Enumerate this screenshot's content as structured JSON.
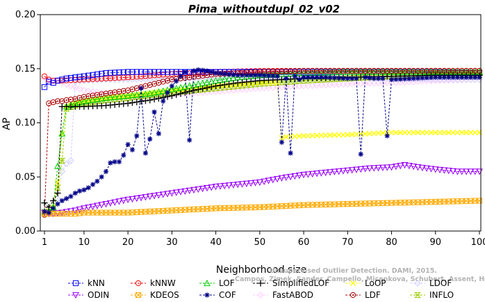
{
  "chart_data": {
    "type": "line",
    "title": "Pima_withoutdupl_02_v02",
    "xlabel": "Neighborhood size",
    "ylabel": "AP",
    "xlim": [
      1,
      100
    ],
    "ylim": [
      0,
      0.2
    ],
    "xticks": [
      1,
      10,
      20,
      30,
      40,
      50,
      60,
      70,
      80,
      90,
      100
    ],
    "yticks": [
      0.0,
      0.05,
      0.1,
      0.15,
      0.2
    ],
    "ytick_labels": [
      "0.00",
      "0.05",
      "0.10",
      "0.15",
      "0.20"
    ],
    "grid": false,
    "legend_position": "bottom",
    "watermark": [
      "Unsupervised Outlier Detection. DAMI, 2015.",
      "Campos, Zimek, Sander, Campello, Micenkova, Schubert, Assent, Houle"
    ],
    "series": [
      {
        "name": "kNN",
        "color": "#0000ff",
        "marker": "square",
        "x": [
          1,
          2,
          3,
          4,
          5,
          6,
          8,
          10,
          15,
          20,
          30,
          40,
          50,
          60,
          70,
          80,
          90,
          100
        ],
        "y": [
          0.133,
          0.138,
          0.137,
          0.139,
          0.14,
          0.141,
          0.142,
          0.143,
          0.146,
          0.147,
          0.147,
          0.147,
          0.147,
          0.147,
          0.147,
          0.147,
          0.147,
          0.146
        ]
      },
      {
        "name": "kNNW",
        "color": "#ff0000",
        "marker": "circle",
        "x": [
          1,
          2,
          3,
          5,
          10,
          20,
          30,
          40,
          50,
          60,
          70,
          80,
          90,
          100
        ],
        "y": [
          0.143,
          0.14,
          0.139,
          0.139,
          0.14,
          0.142,
          0.145,
          0.147,
          0.148,
          0.148,
          0.148,
          0.148,
          0.148,
          0.148
        ]
      },
      {
        "name": "LOF",
        "color": "#00cc00",
        "marker": "triangle-up",
        "x": [
          1,
          2,
          3,
          4,
          5,
          6,
          8,
          10,
          15,
          20,
          25,
          30,
          35,
          40,
          45,
          50,
          60,
          70,
          80,
          90,
          100
        ],
        "y": [
          0.018,
          0.018,
          0.022,
          0.06,
          0.09,
          0.115,
          0.118,
          0.12,
          0.123,
          0.125,
          0.127,
          0.131,
          0.135,
          0.139,
          0.142,
          0.144,
          0.146,
          0.147,
          0.147,
          0.147,
          0.147
        ]
      },
      {
        "name": "SimplifiedLOF",
        "color": "#000000",
        "marker": "plus",
        "x": [
          1,
          2,
          3,
          4,
          5,
          6,
          8,
          10,
          15,
          20,
          25,
          30,
          35,
          40,
          45,
          50,
          55,
          60,
          70,
          80,
          90,
          100
        ],
        "y": [
          0.026,
          0.022,
          0.028,
          0.035,
          0.115,
          0.115,
          0.115,
          0.115,
          0.116,
          0.118,
          0.121,
          0.125,
          0.13,
          0.134,
          0.137,
          0.139,
          0.14,
          0.141,
          0.142,
          0.143,
          0.144,
          0.144
        ]
      },
      {
        "name": "LoOP",
        "color": "#ffff00",
        "marker": "x",
        "x": [
          1,
          2,
          3,
          4,
          5,
          6,
          8,
          10,
          15,
          20,
          30,
          40,
          50,
          54,
          55,
          56,
          60,
          70,
          80,
          90,
          100
        ],
        "y": [
          0.018,
          0.017,
          0.022,
          0.045,
          0.09,
          0.115,
          0.118,
          0.12,
          0.123,
          0.125,
          0.13,
          0.134,
          0.137,
          0.137,
          0.086,
          0.087,
          0.088,
          0.089,
          0.091,
          0.091,
          0.091
        ]
      },
      {
        "name": "LDOF",
        "color": "#ccccff",
        "marker": "diamond",
        "x": [
          1,
          2,
          3,
          4,
          5,
          6,
          7,
          8,
          10,
          15,
          20,
          30,
          40,
          50,
          60,
          70,
          80,
          90,
          100
        ],
        "y": [
          0.017,
          0.016,
          0.02,
          0.03,
          0.055,
          0.062,
          0.065,
          0.138,
          0.139,
          0.14,
          0.14,
          0.141,
          0.141,
          0.141,
          0.141,
          0.141,
          0.141,
          0.14,
          0.14
        ]
      },
      {
        "name": "ODIN",
        "color": "#9900ff",
        "marker": "triangle-down",
        "x": [
          1,
          2,
          3,
          5,
          8,
          10,
          15,
          20,
          25,
          30,
          35,
          40,
          45,
          50,
          55,
          60,
          65,
          70,
          75,
          80,
          83,
          86,
          90,
          95,
          100
        ],
        "y": [
          0.017,
          0.016,
          0.016,
          0.017,
          0.019,
          0.021,
          0.025,
          0.029,
          0.032,
          0.035,
          0.038,
          0.041,
          0.043,
          0.045,
          0.049,
          0.052,
          0.054,
          0.056,
          0.058,
          0.059,
          0.061,
          0.059,
          0.057,
          0.055,
          0.055
        ]
      },
      {
        "name": "KDEOS",
        "color": "#ffaa00",
        "marker": "square-x",
        "x": [
          1,
          3,
          5,
          8,
          10,
          15,
          20,
          25,
          30,
          40,
          50,
          60,
          70,
          80,
          90,
          100
        ],
        "y": [
          0.016,
          0.016,
          0.016,
          0.016,
          0.017,
          0.017,
          0.017,
          0.018,
          0.019,
          0.021,
          0.022,
          0.024,
          0.025,
          0.026,
          0.027,
          0.028
        ]
      },
      {
        "name": "COF",
        "color": "#000088",
        "marker": "star",
        "x": [
          1,
          2,
          3,
          4,
          5,
          6,
          7,
          8,
          9,
          10,
          11,
          12,
          13,
          14,
          15,
          16,
          17,
          18,
          19,
          20,
          21,
          22,
          23,
          24,
          25,
          26,
          27,
          28,
          29,
          30,
          32,
          33,
          34,
          35,
          36,
          38,
          40,
          45,
          50,
          54,
          55,
          56,
          57,
          58,
          59,
          60,
          65,
          70,
          72,
          73,
          74,
          76,
          78,
          79,
          80,
          85,
          90,
          95,
          100
        ],
        "y": [
          0.018,
          0.017,
          0.021,
          0.025,
          0.028,
          0.03,
          0.032,
          0.035,
          0.037,
          0.038,
          0.04,
          0.043,
          0.046,
          0.05,
          0.055,
          0.063,
          0.064,
          0.064,
          0.07,
          0.08,
          0.075,
          0.088,
          0.132,
          0.072,
          0.085,
          0.11,
          0.09,
          0.12,
          0.128,
          0.134,
          0.143,
          0.147,
          0.084,
          0.148,
          0.149,
          0.148,
          0.146,
          0.144,
          0.144,
          0.143,
          0.082,
          0.141,
          0.072,
          0.143,
          0.14,
          0.142,
          0.142,
          0.141,
          0.141,
          0.071,
          0.142,
          0.141,
          0.141,
          0.088,
          0.14,
          0.141,
          0.142,
          0.142,
          0.142
        ]
      },
      {
        "name": "FastABOD",
        "color": "#ffccff",
        "marker": "diamond",
        "x": [
          1,
          5,
          10,
          20,
          30,
          40,
          50,
          60,
          70,
          80,
          90,
          100
        ],
        "y": [
          0.141,
          0.137,
          0.13,
          0.124,
          0.126,
          0.129,
          0.132,
          0.134,
          0.136,
          0.137,
          0.139,
          0.14
        ]
      },
      {
        "name": "LDF",
        "color": "#aa0000",
        "marker": "circle-dot",
        "x": [
          1,
          2,
          3,
          4,
          5,
          6,
          8,
          10,
          15,
          20,
          25,
          30,
          40,
          50,
          60,
          70,
          80,
          90,
          100
        ],
        "y": [
          0.015,
          0.118,
          0.119,
          0.12,
          0.12,
          0.121,
          0.122,
          0.124,
          0.127,
          0.13,
          0.135,
          0.14,
          0.145,
          0.147,
          0.148,
          0.148,
          0.148,
          0.148,
          0.148
        ]
      },
      {
        "name": "INFLO",
        "color": "#99cc00",
        "marker": "hourglass",
        "x": [
          1,
          2,
          3,
          4,
          5,
          6,
          8,
          10,
          15,
          20,
          30,
          40,
          50,
          60,
          70,
          80,
          90,
          100
        ],
        "y": [
          0.017,
          0.018,
          0.02,
          0.04,
          0.065,
          0.113,
          0.116,
          0.118,
          0.121,
          0.123,
          0.128,
          0.132,
          0.136,
          0.139,
          0.141,
          0.143,
          0.144,
          0.144
        ]
      }
    ]
  }
}
